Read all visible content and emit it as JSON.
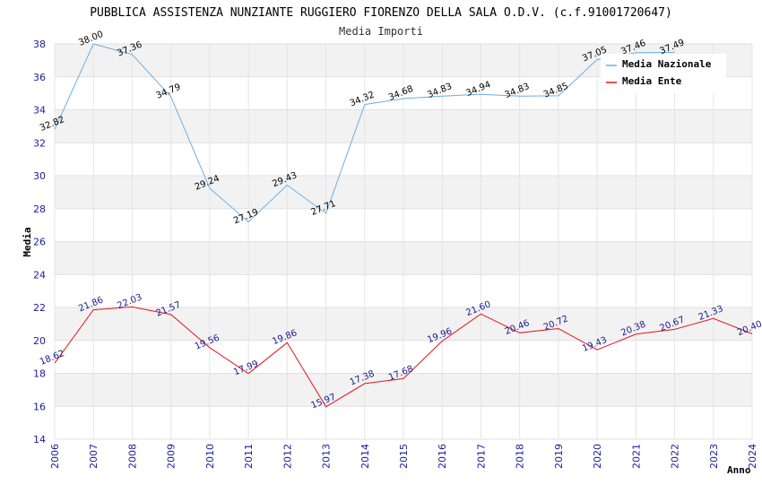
{
  "chart_data": {
    "type": "line",
    "title": "PUBBLICA ASSISTENZA NUNZIANTE RUGGIERO FIORENZO DELLA SALA O.D.V. (c.f.91001720647)",
    "subtitle": "Media Importi",
    "xlabel": "Anno",
    "ylabel": "Media",
    "ylim": [
      14,
      38
    ],
    "yticks": [
      "14",
      "16",
      "18",
      "20",
      "22",
      "24",
      "26",
      "28",
      "30",
      "32",
      "34",
      "36",
      "38"
    ],
    "categories": [
      "2006",
      "2007",
      "2008",
      "2009",
      "2010",
      "2011",
      "2012",
      "2013",
      "2014",
      "2015",
      "2016",
      "2017",
      "2018",
      "2019",
      "2020",
      "2021",
      "2022",
      "2023",
      "2024"
    ],
    "grid": true,
    "legend_position": "top-right",
    "series": [
      {
        "name": "Media Nazionale",
        "color": "#6aaee6",
        "values": [
          32.82,
          38.0,
          37.36,
          34.79,
          29.24,
          27.19,
          29.43,
          27.71,
          34.32,
          34.68,
          34.83,
          34.94,
          34.83,
          34.85,
          37.05,
          37.46,
          37.49,
          null,
          null
        ],
        "labels": [
          "32.82",
          "38.00",
          "37.36",
          "34.79",
          "29.24",
          "27.19",
          "29.43",
          "27.71",
          "34.32",
          "34.68",
          "34.83",
          "34.94",
          "34.83",
          "34.85",
          "37.05",
          "37.46",
          "37.49",
          "",
          ""
        ]
      },
      {
        "name": "Media Ente",
        "color": "#e8141e",
        "values": [
          18.62,
          21.86,
          22.03,
          21.57,
          19.56,
          17.99,
          19.86,
          15.97,
          17.38,
          17.68,
          19.96,
          21.6,
          20.46,
          20.72,
          19.43,
          20.38,
          20.67,
          21.33,
          20.4
        ],
        "labels": [
          "18.62",
          "21.86",
          "22.03",
          "21.57",
          "19.56",
          "17.99",
          "19.86",
          "15.97",
          "17.38",
          "17.68",
          "19.96",
          "21.60",
          "20.46",
          "20.72",
          "19.43",
          "20.38",
          "20.67",
          "21.33",
          "20.40"
        ]
      }
    ]
  }
}
